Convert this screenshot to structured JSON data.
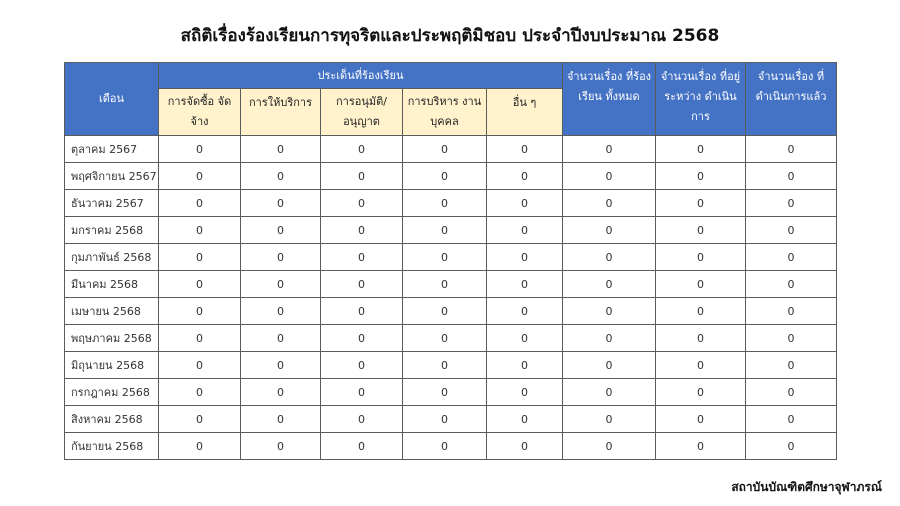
{
  "title": "สถิติเรื่องร้องเรียนการทุจริตและประพฤติมิชอบ  ประจำปีงบประมาณ  2568",
  "headers": {
    "month": "เดือน",
    "issues": "ประเด็นที่ร้องเรียน",
    "sub": [
      "การจัดซื้อ จัดจ้าง",
      "การให้บริการ",
      "การอนุมัติ/ อนุญาต",
      "การบริหาร งานบุคคล",
      "อื่น ๆ"
    ],
    "total": "จำนวนเรื่อง ที่ร้องเรียน ทั้งหมด",
    "pending": "จำนวนเรื่อง ที่อยู่ระหว่าง ดำเนินการ",
    "done": "จำนวนเรื่อง ที่ดำเนินการแล้ว"
  },
  "rows": [
    {
      "month": "ตุลาคม 2567",
      "values": [
        "0",
        "0",
        "0",
        "0",
        "0",
        "0",
        "0",
        "0"
      ]
    },
    {
      "month": "พฤศจิกายน 2567",
      "values": [
        "0",
        "0",
        "0",
        "0",
        "0",
        "0",
        "0",
        "0"
      ]
    },
    {
      "month": "ธันวาคม 2567",
      "values": [
        "0",
        "0",
        "0",
        "0",
        "0",
        "0",
        "0",
        "0"
      ]
    },
    {
      "month": "มกราคม 2568",
      "values": [
        "0",
        "0",
        "0",
        "0",
        "0",
        "0",
        "0",
        "0"
      ]
    },
    {
      "month": "กุมภาพันธ์ 2568",
      "values": [
        "0",
        "0",
        "0",
        "0",
        "0",
        "0",
        "0",
        "0"
      ]
    },
    {
      "month": "มีนาคม 2568",
      "values": [
        "0",
        "0",
        "0",
        "0",
        "0",
        "0",
        "0",
        "0"
      ]
    },
    {
      "month": "เมษายน 2568",
      "values": [
        "0",
        "0",
        "0",
        "0",
        "0",
        "0",
        "0",
        "0"
      ]
    },
    {
      "month": "พฤษภาคม 2568",
      "values": [
        "0",
        "0",
        "0",
        "0",
        "0",
        "0",
        "0",
        "0"
      ]
    },
    {
      "month": "มิถุนายน 2568",
      "values": [
        "0",
        "0",
        "0",
        "0",
        "0",
        "0",
        "0",
        "0"
      ]
    },
    {
      "month": "กรกฎาคม 2568",
      "values": [
        "0",
        "0",
        "0",
        "0",
        "0",
        "0",
        "0",
        "0"
      ]
    },
    {
      "month": "สิงหาคม 2568",
      "values": [
        "0",
        "0",
        "0",
        "0",
        "0",
        "0",
        "0",
        "0"
      ]
    },
    {
      "month": "กันยายน 2568",
      "values": [
        "0",
        "0",
        "0",
        "0",
        "0",
        "0",
        "0",
        "0"
      ]
    }
  ],
  "footer": "สถาบันบัณฑิตศึกษาจุฬาภรณ์",
  "colors": {
    "header": "#4472c4",
    "subheader": "#fff2cc"
  }
}
